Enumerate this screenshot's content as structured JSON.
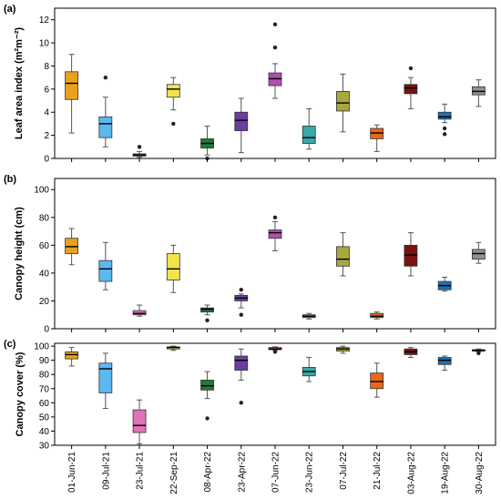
{
  "chart_data": {
    "type": "boxplot",
    "categories": [
      "01-Jun-21",
      "09-Jul-21",
      "23-Jul-21",
      "22-Sep-21",
      "08-Apr-22",
      "23-Apr-22",
      "07-Jun-22",
      "23-Jun-22",
      "07-Jul-22",
      "21-Jul-22",
      "03-Aug-22",
      "19-Aug-22",
      "30-Aug-22"
    ],
    "colors": [
      "#e8a21c",
      "#5bb8f0",
      "#e074b8",
      "#f2e34a",
      "#1f7a3a",
      "#6a3ea1",
      "#b04fb0",
      "#3aa8a8",
      "#a8a840",
      "#e8681c",
      "#7a1212",
      "#1f6fb0",
      "#909090"
    ],
    "panels": [
      {
        "label": "(a)",
        "ylabel": "Leaf area index (m²m⁻²)",
        "ylim": [
          0,
          13
        ],
        "yticks": [
          0,
          2,
          4,
          6,
          8,
          10,
          12
        ],
        "boxes": [
          {
            "min": 2.2,
            "q1": 5.1,
            "median": 6.5,
            "q3": 7.5,
            "max": 9.0,
            "outliers": []
          },
          {
            "min": 1.0,
            "q1": 1.8,
            "median": 3.0,
            "q3": 3.6,
            "max": 5.3,
            "outliers": [
              7.0
            ]
          },
          {
            "min": 0.1,
            "q1": 0.2,
            "median": 0.3,
            "q3": 0.4,
            "max": 0.6,
            "outliers": [
              1.0
            ]
          },
          {
            "min": 4.2,
            "q1": 5.3,
            "median": 6.0,
            "q3": 6.4,
            "max": 7.0,
            "outliers": [
              3.0
            ]
          },
          {
            "min": 0.3,
            "q1": 0.9,
            "median": 1.3,
            "q3": 1.7,
            "max": 2.8,
            "outliers": [
              0.0
            ]
          },
          {
            "min": 0.5,
            "q1": 2.4,
            "median": 3.3,
            "q3": 4.0,
            "max": 5.2,
            "outliers": []
          },
          {
            "min": 5.2,
            "q1": 6.3,
            "median": 6.9,
            "q3": 7.4,
            "max": 8.2,
            "outliers": [
              9.6,
              11.6
            ]
          },
          {
            "min": 0.8,
            "q1": 1.3,
            "median": 1.8,
            "q3": 2.8,
            "max": 4.3,
            "outliers": []
          },
          {
            "min": 2.3,
            "q1": 4.1,
            "median": 4.8,
            "q3": 5.8,
            "max": 7.3,
            "outliers": []
          },
          {
            "min": 0.6,
            "q1": 1.7,
            "median": 2.2,
            "q3": 2.6,
            "max": 2.9,
            "outliers": []
          },
          {
            "min": 4.3,
            "q1": 5.6,
            "median": 6.1,
            "q3": 6.4,
            "max": 7.0,
            "outliers": [
              7.8
            ]
          },
          {
            "min": 3.1,
            "q1": 3.4,
            "median": 3.6,
            "q3": 4.0,
            "max": 4.7,
            "outliers": [
              2.1,
              2.6
            ]
          },
          {
            "min": 4.5,
            "q1": 5.5,
            "median": 5.8,
            "q3": 6.2,
            "max": 6.8,
            "outliers": []
          }
        ]
      },
      {
        "label": "(b)",
        "ylabel": "Canopy height (cm)",
        "ylim": [
          0,
          108
        ],
        "yticks": [
          0,
          20,
          40,
          60,
          80,
          100
        ],
        "boxes": [
          {
            "min": 46,
            "q1": 54,
            "median": 59,
            "q3": 65,
            "max": 72,
            "outliers": []
          },
          {
            "min": 28,
            "q1": 34,
            "median": 43,
            "q3": 49,
            "max": 62,
            "outliers": []
          },
          {
            "min": 9,
            "q1": 10,
            "median": 11,
            "q3": 13,
            "max": 17,
            "outliers": []
          },
          {
            "min": 26,
            "q1": 35,
            "median": 43,
            "q3": 54,
            "max": 60,
            "outliers": []
          },
          {
            "min": 10,
            "q1": 12,
            "median": 14,
            "q3": 15,
            "max": 17,
            "outliers": [
              6
            ]
          },
          {
            "min": 15,
            "q1": 20,
            "median": 22,
            "q3": 24,
            "max": 25,
            "outliers": [
              10,
              28
            ]
          },
          {
            "min": 56,
            "q1": 65,
            "median": 69,
            "q3": 71,
            "max": 77,
            "outliers": [
              80
            ]
          },
          {
            "min": 7,
            "q1": 8,
            "median": 9,
            "q3": 10,
            "max": 11,
            "outliers": []
          },
          {
            "min": 38,
            "q1": 45,
            "median": 50,
            "q3": 59,
            "max": 69,
            "outliers": []
          },
          {
            "min": 7,
            "q1": 8,
            "median": 9,
            "q3": 11,
            "max": 12,
            "outliers": []
          },
          {
            "min": 38,
            "q1": 45,
            "median": 53,
            "q3": 60,
            "max": 69,
            "outliers": []
          },
          {
            "min": 27,
            "q1": 28,
            "median": 31,
            "q3": 34,
            "max": 37,
            "outliers": []
          },
          {
            "min": 47,
            "q1": 50,
            "median": 54,
            "q3": 57,
            "max": 62,
            "outliers": []
          }
        ]
      },
      {
        "label": "(c)",
        "ylabel": "Canopy cover (%)",
        "ylim": [
          30,
          102
        ],
        "yticks": [
          30,
          40,
          50,
          60,
          70,
          80,
          90,
          100
        ],
        "boxes": [
          {
            "min": 86,
            "q1": 91,
            "median": 94,
            "q3": 96,
            "max": 99,
            "outliers": []
          },
          {
            "min": 56,
            "q1": 67,
            "median": 84,
            "q3": 88,
            "max": 95,
            "outliers": []
          },
          {
            "min": 31,
            "q1": 39,
            "median": 44,
            "q3": 55,
            "max": 62,
            "outliers": []
          },
          {
            "min": 97,
            "q1": 98,
            "median": 99,
            "q3": 99.5,
            "max": 100,
            "outliers": []
          },
          {
            "min": 63,
            "q1": 69,
            "median": 72,
            "q3": 76,
            "max": 82,
            "outliers": [
              49
            ]
          },
          {
            "min": 76,
            "q1": 83,
            "median": 90,
            "q3": 93,
            "max": 98,
            "outliers": [
              60
            ]
          },
          {
            "min": 97,
            "q1": 97.5,
            "median": 98,
            "q3": 99,
            "max": 99.5,
            "outliers": [
              96
            ]
          },
          {
            "min": 75,
            "q1": 79,
            "median": 82,
            "q3": 85,
            "max": 92,
            "outliers": []
          },
          {
            "min": 95,
            "q1": 96.5,
            "median": 98,
            "q3": 99,
            "max": 100,
            "outliers": []
          },
          {
            "min": 64,
            "q1": 70,
            "median": 75,
            "q3": 81,
            "max": 88,
            "outliers": []
          },
          {
            "min": 92,
            "q1": 94,
            "median": 96,
            "q3": 98,
            "max": 99,
            "outliers": []
          },
          {
            "min": 83,
            "q1": 87,
            "median": 90,
            "q3": 92,
            "max": 93,
            "outliers": []
          },
          {
            "min": 96,
            "q1": 96.5,
            "median": 97,
            "q3": 97.5,
            "max": 98,
            "outliers": [
              95
            ]
          }
        ]
      }
    ]
  }
}
